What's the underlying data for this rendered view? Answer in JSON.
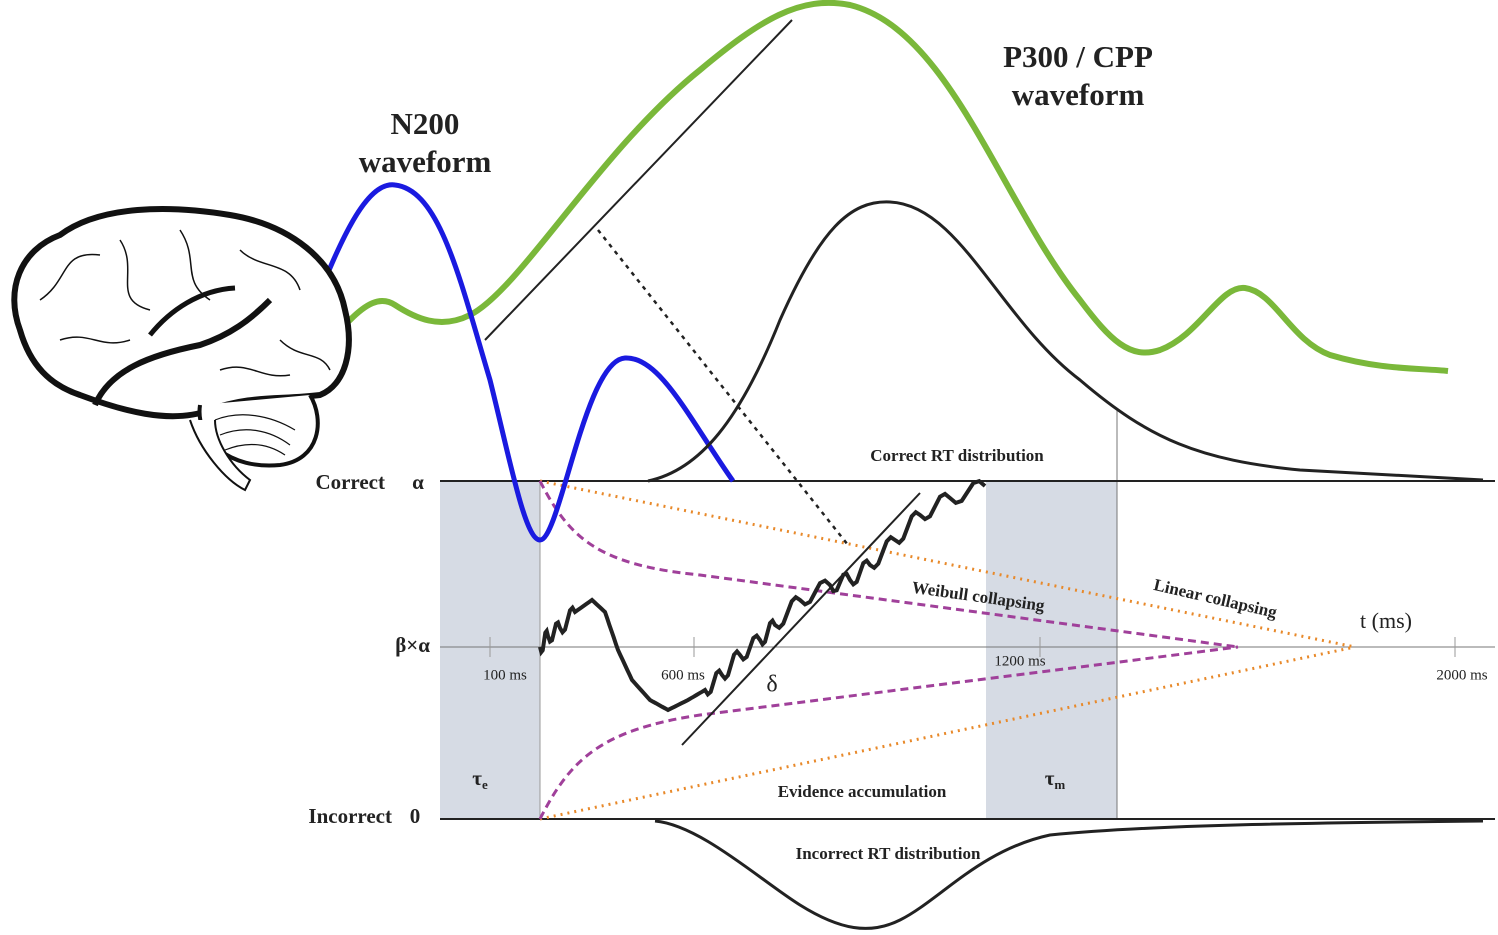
{
  "waveforms": {
    "n200": [
      "N200",
      "waveform"
    ],
    "p300": [
      "P300 / CPP",
      "waveform"
    ]
  },
  "distributions": {
    "correct": "Correct RT distribution",
    "incorrect": "Incorrect RT distribution"
  },
  "boundaries": {
    "upper": {
      "label": "Correct",
      "symbol": "α"
    },
    "start": {
      "symbol": "β×α"
    },
    "lower": {
      "label": "Incorrect",
      "symbol": "0"
    }
  },
  "time_axis": {
    "ticks": [
      "100 ms",
      "600 ms",
      "1200 ms",
      "2000 ms"
    ],
    "label": "t (ms)"
  },
  "parameters": {
    "drift": "δ",
    "encoding": {
      "symbol": "τ",
      "subscript": "e"
    },
    "motor": {
      "symbol": "τ",
      "subscript": "m"
    }
  },
  "annotations": {
    "weibull": "Weibull collapsing",
    "linear": "Linear collapsing",
    "accumulation": "Evidence accumulation"
  }
}
